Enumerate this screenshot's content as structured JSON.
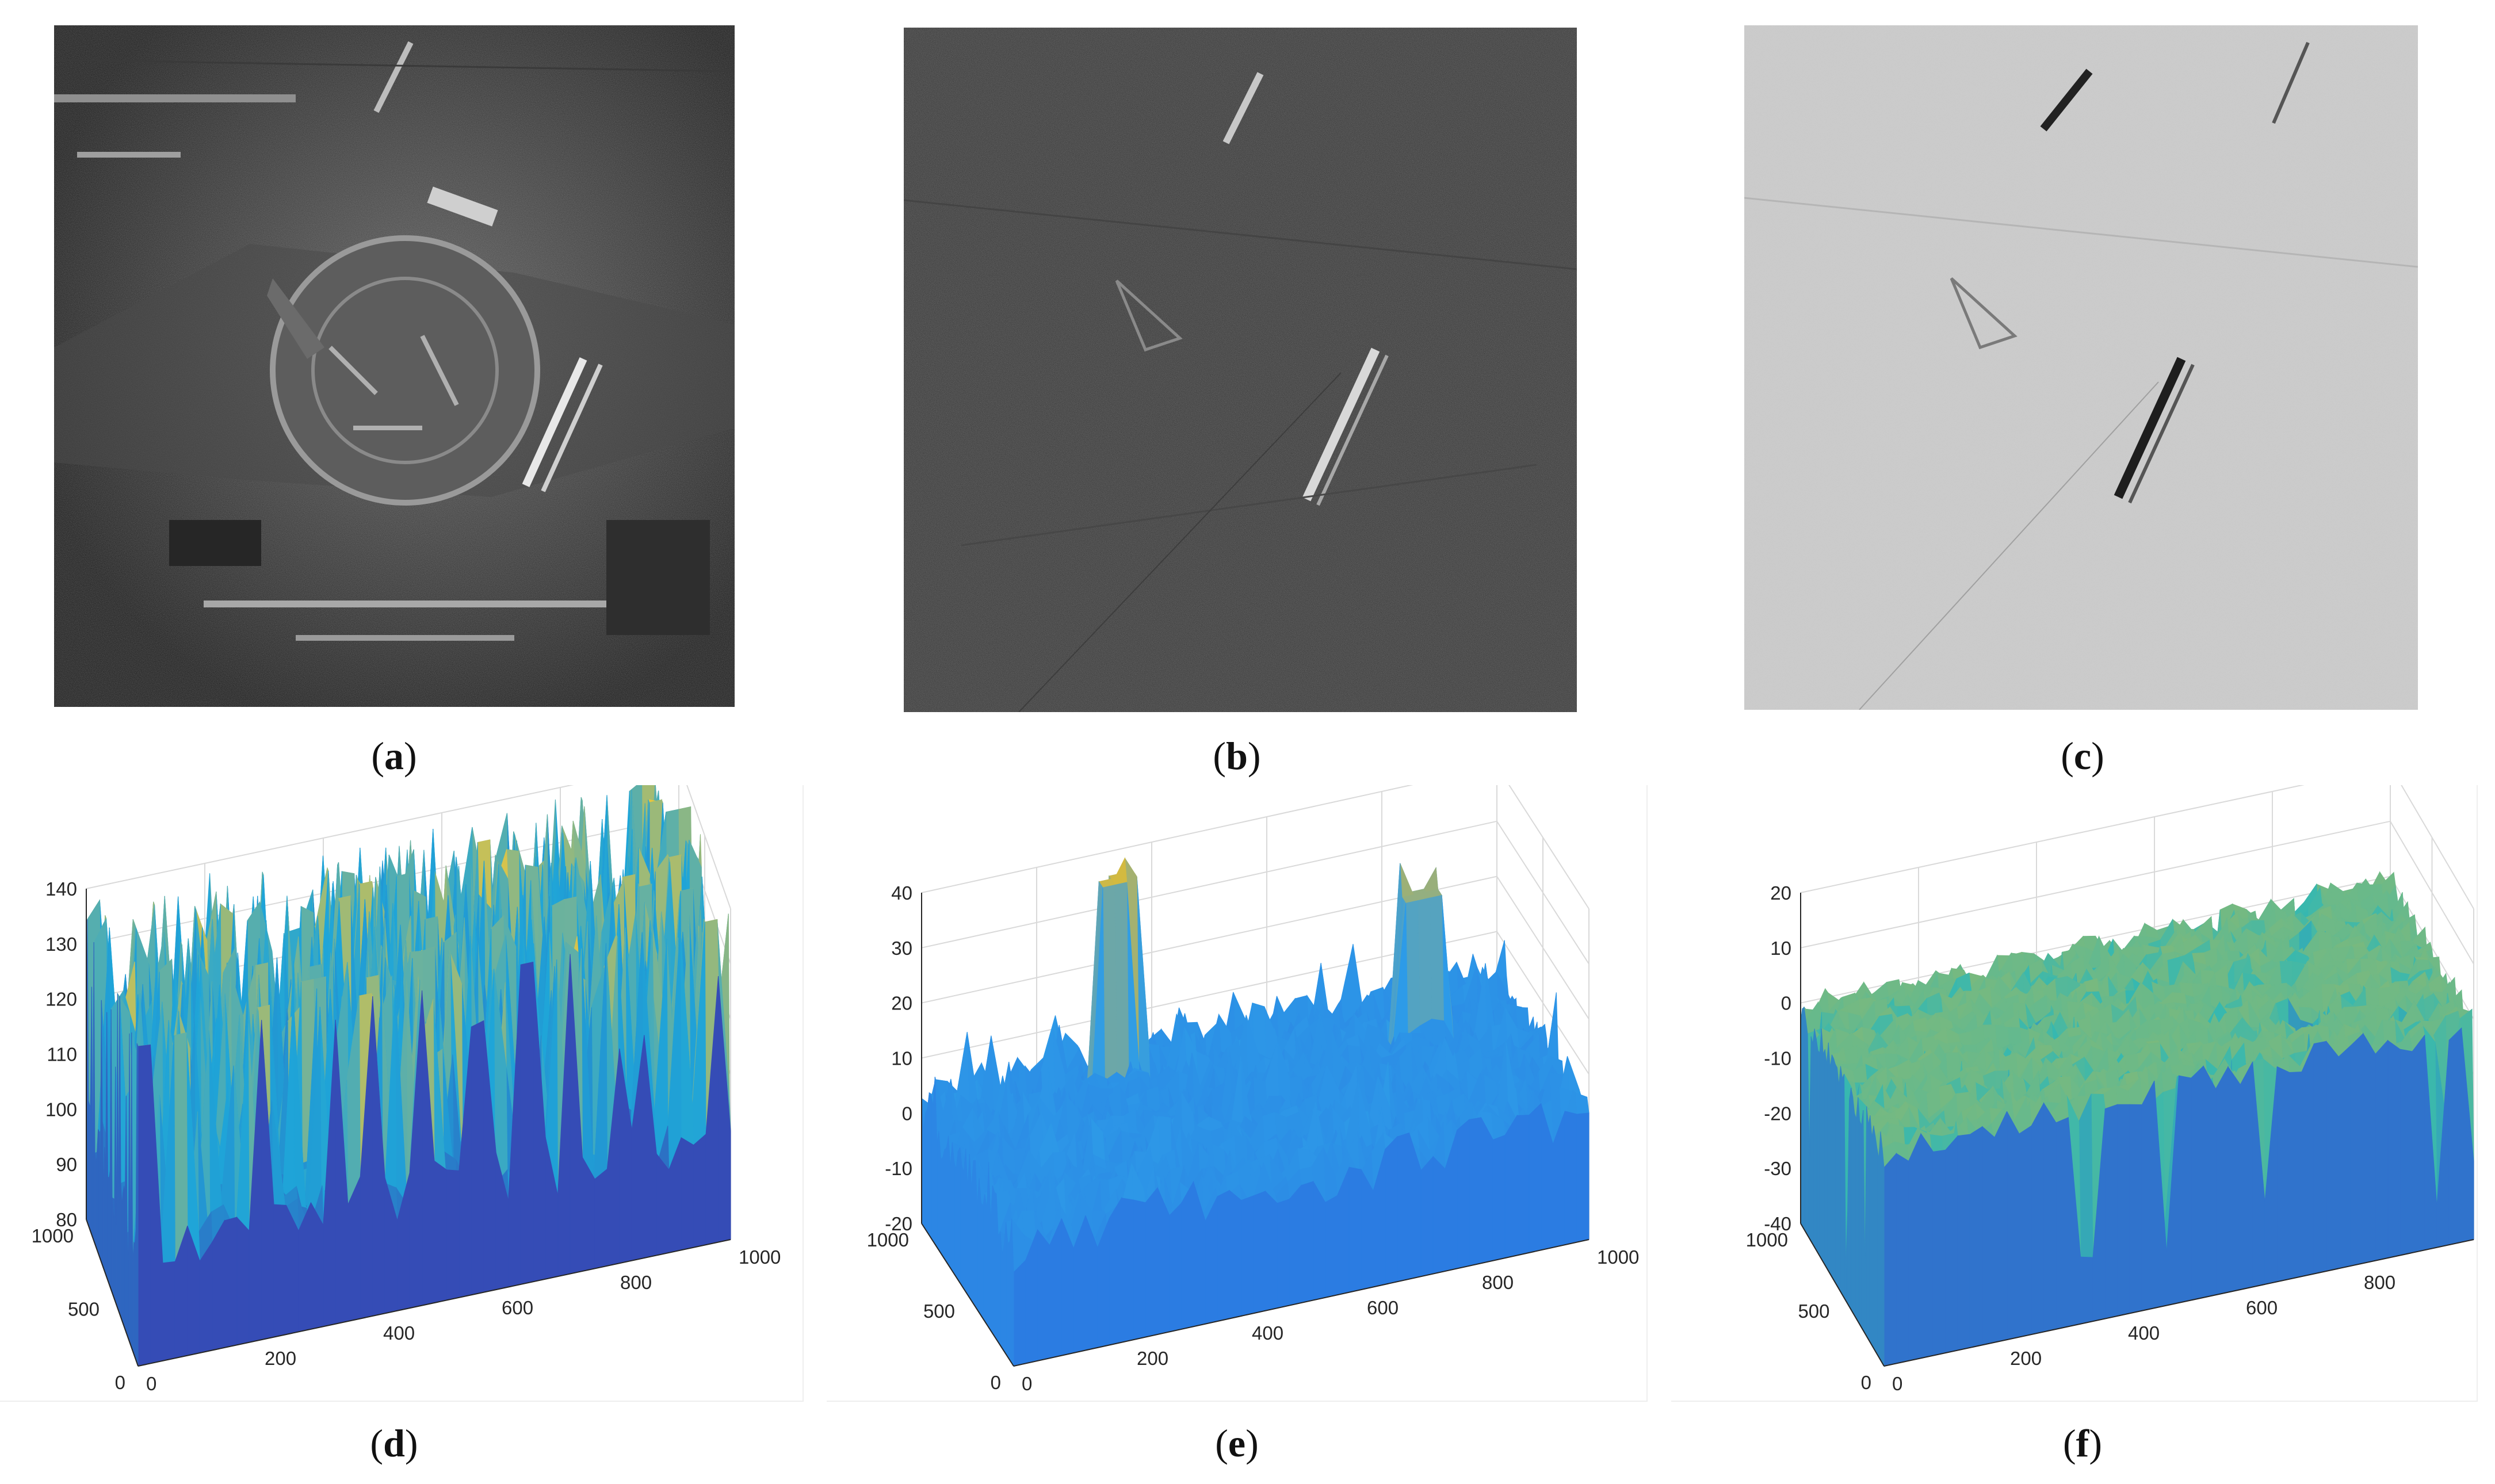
{
  "figure": {
    "panels": [
      {
        "id": "a",
        "label": "a",
        "kind": "sar-image",
        "tone": "dark-urban"
      },
      {
        "id": "b",
        "label": "b",
        "kind": "sar-image",
        "tone": "dark-noisy"
      },
      {
        "id": "c",
        "label": "c",
        "kind": "sar-image",
        "tone": "bright-inverted"
      },
      {
        "id": "d",
        "label": "d",
        "kind": "surface-plot"
      },
      {
        "id": "e",
        "label": "e",
        "kind": "surface-plot"
      },
      {
        "id": "f",
        "label": "f",
        "kind": "surface-plot"
      }
    ]
  },
  "chart_data": [
    {
      "type": "surface",
      "panel": "d",
      "title": "",
      "xlabel": "",
      "ylabel": "",
      "zlabel": "",
      "x_ticks": [
        "0",
        "200",
        "400",
        "600",
        "800",
        "1000"
      ],
      "y_ticks": [
        "0",
        "500",
        "1000"
      ],
      "z_ticks": [
        "80",
        "90",
        "100",
        "110",
        "120",
        "130",
        "140"
      ],
      "xlim": [
        0,
        1000
      ],
      "ylim": [
        0,
        1000
      ],
      "zlim": [
        80,
        140
      ],
      "surface_range": [
        80,
        138
      ],
      "colormap": "parula",
      "colors": {
        "low": "#3e26a8",
        "mid": "#1fa5d8",
        "high": "#f9c931"
      },
      "grid": true
    },
    {
      "type": "surface",
      "panel": "e",
      "title": "",
      "xlabel": "",
      "ylabel": "",
      "zlabel": "",
      "x_ticks": [
        "0",
        "200",
        "400",
        "600",
        "800",
        "1000"
      ],
      "y_ticks": [
        "0",
        "500",
        "1000"
      ],
      "z_ticks": [
        "-20",
        "-10",
        "0",
        "10",
        "20",
        "30",
        "40"
      ],
      "xlim": [
        0,
        1000
      ],
      "ylim": [
        0,
        1000
      ],
      "zlim": [
        -20,
        40
      ],
      "surface_range": [
        -18,
        38
      ],
      "colormap": "parula",
      "colors": {
        "low": "#2a6fe0",
        "mid": "#2d9ce8",
        "high": "#d9bb3a"
      },
      "grid": true
    },
    {
      "type": "surface",
      "panel": "f",
      "title": "",
      "xlabel": "",
      "ylabel": "",
      "zlabel": "",
      "x_ticks": [
        "0",
        "200",
        "400",
        "600",
        "800",
        "1000"
      ],
      "y_ticks": [
        "0",
        "500",
        "1000"
      ],
      "z_ticks": [
        "-40",
        "-30",
        "-20",
        "-10",
        "0",
        "10",
        "20"
      ],
      "xlim": [
        0,
        1000
      ],
      "ylim": [
        0,
        1000
      ],
      "zlim": [
        -40,
        20
      ],
      "surface_range": [
        -38,
        15
      ],
      "colormap": "parula",
      "colors": {
        "low": "#2d55d8",
        "mid": "#36b8b0",
        "high": "#e8ba2c"
      },
      "grid": true
    }
  ]
}
